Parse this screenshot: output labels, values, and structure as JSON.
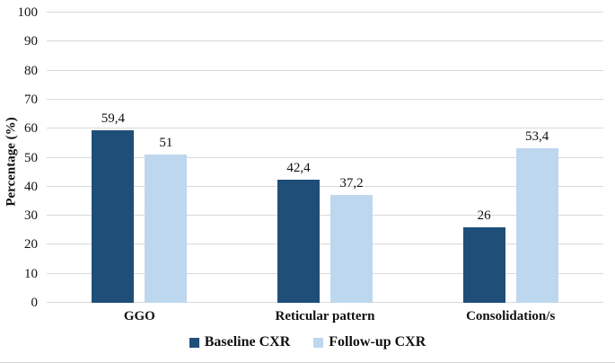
{
  "chart_data": {
    "type": "bar",
    "title": "",
    "xlabel": "",
    "ylabel": "Percentage (%)",
    "ylim": [
      0,
      100
    ],
    "yticks": [
      0,
      10,
      20,
      30,
      40,
      50,
      60,
      70,
      80,
      90,
      100
    ],
    "grid": true,
    "gridline_color": "#d9d9d9",
    "legend_position": "bottom",
    "categories": [
      "GGO",
      "Reticular pattern",
      "Consolidation/s"
    ],
    "series": [
      {
        "name": "Baseline CXR",
        "color": "#1f4e79",
        "values": [
          59.4,
          42.4,
          26
        ],
        "value_labels": [
          "59,4",
          "42,4",
          "26"
        ]
      },
      {
        "name": "Follow-up CXR",
        "color": "#bdd7ee",
        "values": [
          51,
          37.2,
          53.4
        ],
        "value_labels": [
          "51",
          "37,2",
          "53,4"
        ]
      }
    ]
  }
}
